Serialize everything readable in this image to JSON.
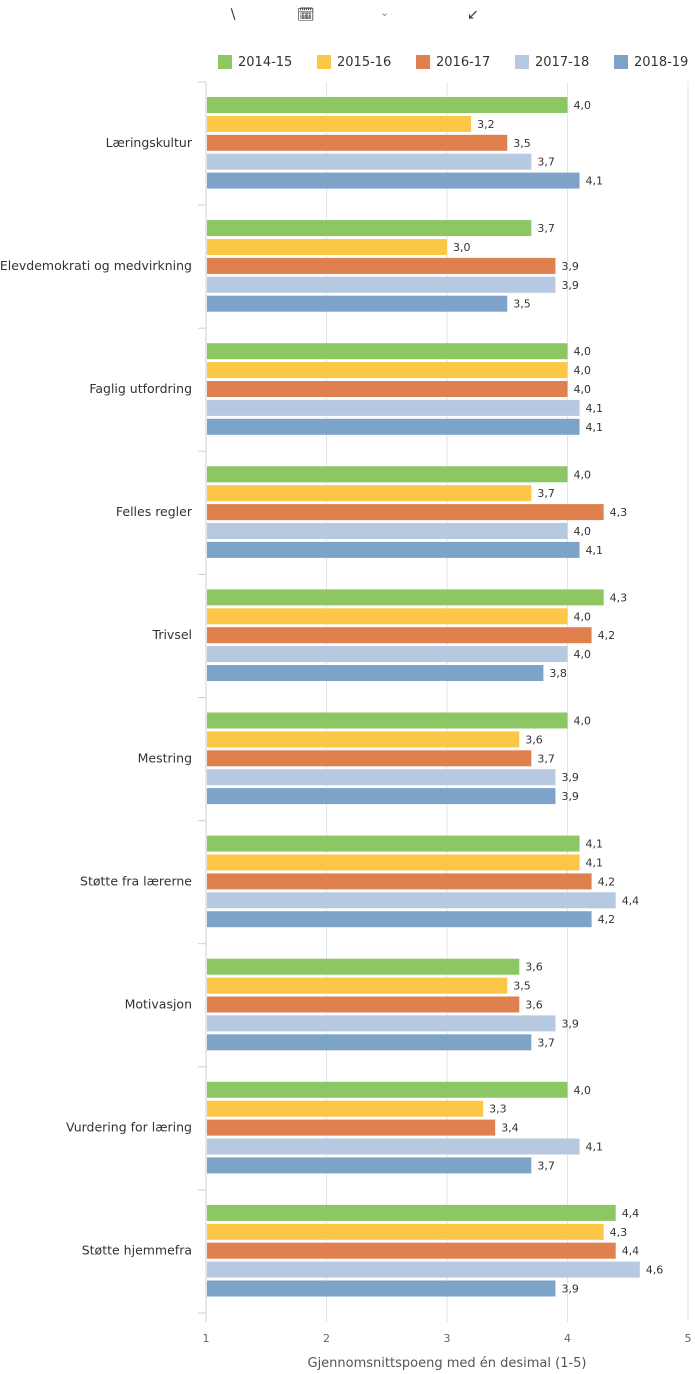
{
  "toolbar": {
    "icons": [
      "back-arrow-icon",
      "calendar-icon",
      "chevron-down-icon",
      "collapse-arrow-icon"
    ]
  },
  "colors": {
    "2014-15": "#8cc764",
    "2015-16": "#fcc646",
    "2016-17": "#e0804f",
    "2017-18": "#b6c9e0",
    "2018-19": "#7ea3c9",
    "grid": "#dde5ee",
    "axis": "#c8d2de"
  },
  "chart_data": {
    "type": "bar",
    "orientation": "horizontal",
    "categories": [
      "Læringskultur",
      "Elevdemokrati og medvirkning",
      "Faglig utfordring",
      "Felles regler",
      "Trivsel",
      "Mestring",
      "Støtte fra lærerne",
      "Motivasjon",
      "Vurdering for læring",
      "Støtte hjemmefra"
    ],
    "series": [
      {
        "name": "2014-15",
        "values": [
          4.0,
          3.7,
          4.0,
          4.0,
          4.3,
          4.0,
          4.1,
          3.6,
          4.0,
          4.4
        ]
      },
      {
        "name": "2015-16",
        "values": [
          3.2,
          3.0,
          4.0,
          3.7,
          4.0,
          3.6,
          4.1,
          3.5,
          3.3,
          4.3
        ]
      },
      {
        "name": "2016-17",
        "values": [
          3.5,
          3.9,
          4.0,
          4.3,
          4.2,
          3.7,
          4.2,
          3.6,
          3.4,
          4.4
        ]
      },
      {
        "name": "2017-18",
        "values": [
          3.7,
          3.9,
          4.1,
          4.0,
          4.0,
          3.9,
          4.4,
          3.9,
          4.1,
          4.6
        ]
      },
      {
        "name": "2018-19",
        "values": [
          4.1,
          3.5,
          4.1,
          4.1,
          3.8,
          3.9,
          4.2,
          3.7,
          3.7,
          3.9
        ]
      }
    ],
    "value_labels": [
      [
        "4,0",
        "3,7",
        "4,0",
        "4,0",
        "4,3",
        "4,0",
        "4,1",
        "3,6",
        "4,0",
        "4,4"
      ],
      [
        "3,2",
        "3,0",
        "4,0",
        "3,7",
        "4,0",
        "3,6",
        "4,1",
        "3,5",
        "3,3",
        "4,3"
      ],
      [
        "3,5",
        "3,9",
        "4,0",
        "4,3",
        "4,2",
        "3,7",
        "4,2",
        "3,6",
        "3,4",
        "4,4"
      ],
      [
        "3,7",
        "3,9",
        "4,1",
        "4,0",
        "4,0",
        "3,9",
        "4,4",
        "3,9",
        "4,1",
        "4,6"
      ],
      [
        "4,1",
        "3,5",
        "4,1",
        "4,1",
        "3,8",
        "3,9",
        "4,2",
        "3,7",
        "3,7",
        "3,9"
      ]
    ],
    "xlabel": "Gjennomsnittspoeng med én desimal (1-5)",
    "ylabel": "",
    "xlim": [
      1,
      5
    ],
    "x_ticks": [
      "1",
      "2",
      "3",
      "4",
      "5"
    ],
    "grid": true,
    "legend_position": "top-right"
  }
}
